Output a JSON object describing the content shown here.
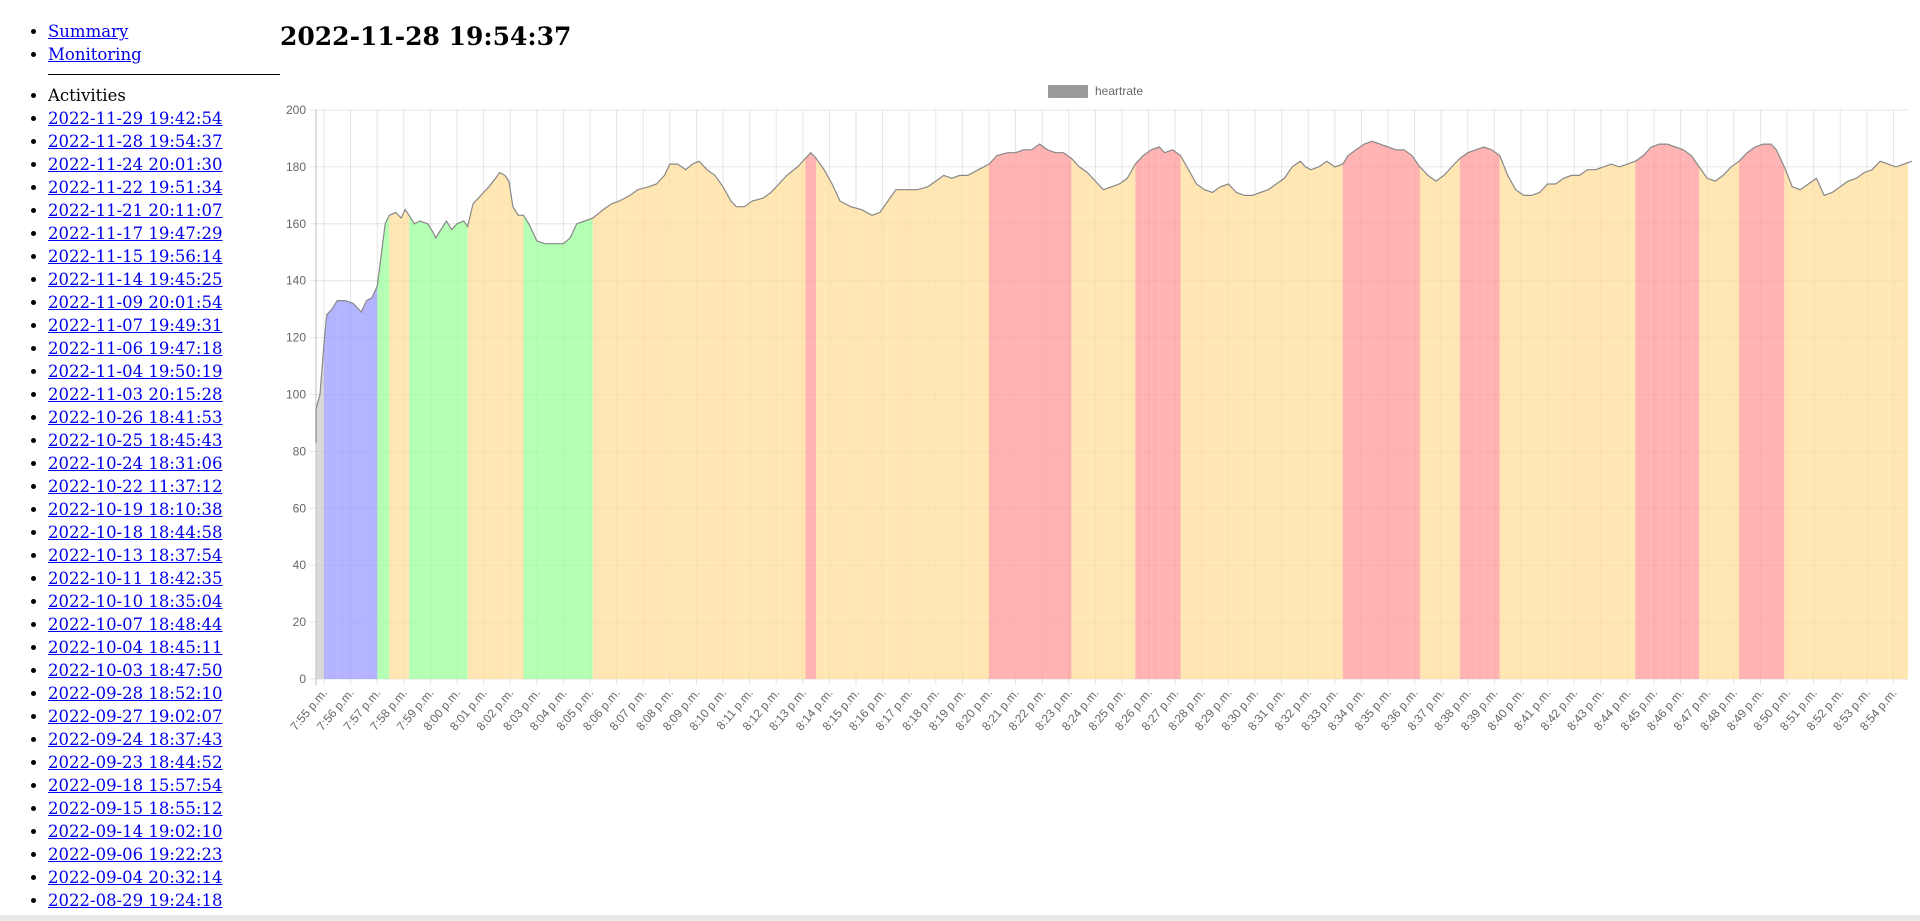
{
  "nav": {
    "links": [
      {
        "label": "Summary"
      },
      {
        "label": "Monitoring"
      }
    ]
  },
  "activities": {
    "heading": "Activities",
    "items": [
      "2022-11-29 19:42:54",
      "2022-11-28 19:54:37",
      "2022-11-24 20:01:30",
      "2022-11-22 19:51:34",
      "2022-11-21 20:11:07",
      "2022-11-17 19:47:29",
      "2022-11-15 19:56:14",
      "2022-11-14 19:45:25",
      "2022-11-09 20:01:54",
      "2022-11-07 19:49:31",
      "2022-11-06 19:47:18",
      "2022-11-04 19:50:19",
      "2022-11-03 20:15:28",
      "2022-10-26 18:41:53",
      "2022-10-25 18:45:43",
      "2022-10-24 18:31:06",
      "2022-10-22 11:37:12",
      "2022-10-19 18:10:38",
      "2022-10-18 18:44:58",
      "2022-10-13 18:37:54",
      "2022-10-11 18:42:35",
      "2022-10-10 18:35:04",
      "2022-10-07 18:48:44",
      "2022-10-04 18:45:11",
      "2022-10-03 18:47:50",
      "2022-09-28 18:52:10",
      "2022-09-27 19:02:07",
      "2022-09-24 18:37:43",
      "2022-09-23 18:44:52",
      "2022-09-18 15:57:54",
      "2022-09-15 18:55:12",
      "2022-09-14 19:02:10",
      "2022-09-06 19:22:23",
      "2022-09-04 20:32:14",
      "2022-08-29 19:24:18"
    ]
  },
  "title": "2022-11-28 19:54:37",
  "chart_data": {
    "type": "area",
    "legend": {
      "label": "heartrate",
      "position": "top-center",
      "swatch_color": "#999999"
    },
    "grid": true,
    "ylim": [
      0,
      200
    ],
    "yticks": [
      0,
      20,
      40,
      60,
      80,
      100,
      120,
      140,
      160,
      180,
      200
    ],
    "xlim_minutes": [
      -0.5,
      59.7
    ],
    "xticks": [
      "7:55 p.m.",
      "7:56 p.m.",
      "7:57 p.m.",
      "7:58 p.m.",
      "7:59 p.m.",
      "8:00 p.m.",
      "8:01 p.m.",
      "8:02 p.m.",
      "8:03 p.m.",
      "8:04 p.m.",
      "8:05 p.m.",
      "8:06 p.m.",
      "8:07 p.m.",
      "8:08 p.m.",
      "8:09 p.m.",
      "8:10 p.m.",
      "8:11 p.m.",
      "8:12 p.m.",
      "8:13 p.m.",
      "8:14 p.m.",
      "8:15 p.m.",
      "8:16 p.m.",
      "8:17 p.m.",
      "8:18 p.m.",
      "8:19 p.m.",
      "8:20 p.m.",
      "8:21 p.m.",
      "8:22 p.m.",
      "8:23 p.m.",
      "8:24 p.m.",
      "8:25 p.m.",
      "8:26 p.m.",
      "8:27 p.m.",
      "8:28 p.m.",
      "8:29 p.m.",
      "8:30 p.m.",
      "8:31 p.m.",
      "8:32 p.m.",
      "8:33 p.m.",
      "8:34 p.m.",
      "8:35 p.m.",
      "8:36 p.m.",
      "8:37 p.m.",
      "8:38 p.m.",
      "8:39 p.m.",
      "8:40 p.m.",
      "8:41 p.m.",
      "8:42 p.m.",
      "8:43 p.m.",
      "8:44 p.m.",
      "8:45 p.m.",
      "8:46 p.m.",
      "8:47 p.m.",
      "8:48 p.m.",
      "8:49 p.m.",
      "8:50 p.m.",
      "8:51 p.m.",
      "8:52 p.m.",
      "8:53 p.m.",
      "8:54 p.m."
    ],
    "zone_colors": {
      "z1": "#cccccc",
      "z2": "#9999ff",
      "z3": "#99ff99",
      "z4": "#ffdd99",
      "z5": "#ff9999"
    },
    "zone_thresholds": [
      110,
      140,
      162,
      182
    ],
    "series": [
      {
        "points_minutes_bpm": [
          [
            -0.5,
            83
          ],
          [
            -0.3,
            95
          ],
          [
            -0.15,
            100
          ],
          [
            0.0,
            118
          ],
          [
            0.1,
            128
          ],
          [
            0.3,
            130
          ],
          [
            0.5,
            133
          ],
          [
            0.8,
            133
          ],
          [
            1.1,
            132
          ],
          [
            1.3,
            130
          ],
          [
            1.4,
            129
          ],
          [
            1.6,
            133
          ],
          [
            1.8,
            134
          ],
          [
            2.0,
            138
          ],
          [
            2.3,
            160
          ],
          [
            2.45,
            163
          ],
          [
            2.7,
            164
          ],
          [
            2.9,
            162
          ],
          [
            3.05,
            165
          ],
          [
            3.2,
            163
          ],
          [
            3.4,
            160
          ],
          [
            3.6,
            161
          ],
          [
            3.9,
            160
          ],
          [
            4.1,
            157
          ],
          [
            4.2,
            155
          ],
          [
            4.4,
            158
          ],
          [
            4.6,
            161
          ],
          [
            4.8,
            158
          ],
          [
            5.0,
            160
          ],
          [
            5.25,
            161
          ],
          [
            5.4,
            159
          ],
          [
            5.6,
            167
          ],
          [
            5.8,
            169
          ],
          [
            6.0,
            171
          ],
          [
            6.2,
            173
          ],
          [
            6.45,
            176
          ],
          [
            6.6,
            178
          ],
          [
            6.8,
            177
          ],
          [
            6.95,
            175
          ],
          [
            7.1,
            166
          ],
          [
            7.3,
            163
          ],
          [
            7.5,
            163
          ],
          [
            7.7,
            160
          ],
          [
            7.85,
            157
          ],
          [
            8.0,
            154
          ],
          [
            8.3,
            153
          ],
          [
            8.7,
            153
          ],
          [
            9.0,
            153
          ],
          [
            9.25,
            155
          ],
          [
            9.5,
            160
          ],
          [
            9.8,
            161
          ],
          [
            10.1,
            162
          ],
          [
            10.5,
            165
          ],
          [
            10.8,
            167
          ],
          [
            11.1,
            168
          ],
          [
            11.5,
            170
          ],
          [
            11.8,
            172
          ],
          [
            12.2,
            173
          ],
          [
            12.5,
            174
          ],
          [
            12.8,
            177
          ],
          [
            13.0,
            181
          ],
          [
            13.3,
            181
          ],
          [
            13.6,
            179
          ],
          [
            13.85,
            181
          ],
          [
            14.1,
            182
          ],
          [
            14.4,
            179
          ],
          [
            14.7,
            177
          ],
          [
            15.0,
            173
          ],
          [
            15.3,
            168
          ],
          [
            15.5,
            166
          ],
          [
            15.8,
            166
          ],
          [
            16.1,
            168
          ],
          [
            16.5,
            169
          ],
          [
            16.8,
            171
          ],
          [
            17.1,
            174
          ],
          [
            17.4,
            177
          ],
          [
            17.8,
            180
          ],
          [
            18.1,
            183
          ],
          [
            18.3,
            185
          ],
          [
            18.5,
            183
          ],
          [
            18.8,
            179
          ],
          [
            19.1,
            174
          ],
          [
            19.4,
            168
          ],
          [
            19.8,
            166
          ],
          [
            20.2,
            165
          ],
          [
            20.6,
            163
          ],
          [
            20.9,
            164
          ],
          [
            21.2,
            168
          ],
          [
            21.5,
            172
          ],
          [
            21.9,
            172
          ],
          [
            22.3,
            172
          ],
          [
            22.7,
            173
          ],
          [
            23.0,
            175
          ],
          [
            23.3,
            177
          ],
          [
            23.6,
            176
          ],
          [
            23.9,
            177
          ],
          [
            24.2,
            177
          ],
          [
            24.6,
            179
          ],
          [
            25.0,
            181
          ],
          [
            25.3,
            184
          ],
          [
            25.7,
            185
          ],
          [
            26.0,
            185
          ],
          [
            26.3,
            186
          ],
          [
            26.6,
            186
          ],
          [
            26.9,
            188
          ],
          [
            27.2,
            186
          ],
          [
            27.5,
            185
          ],
          [
            27.8,
            185
          ],
          [
            28.1,
            183
          ],
          [
            28.4,
            180
          ],
          [
            28.7,
            178
          ],
          [
            29.0,
            175
          ],
          [
            29.3,
            172
          ],
          [
            29.6,
            173
          ],
          [
            29.9,
            174
          ],
          [
            30.2,
            176
          ],
          [
            30.5,
            181
          ],
          [
            30.8,
            184
          ],
          [
            31.1,
            186
          ],
          [
            31.4,
            187
          ],
          [
            31.6,
            185
          ],
          [
            31.9,
            186
          ],
          [
            32.2,
            184
          ],
          [
            32.5,
            179
          ],
          [
            32.8,
            174
          ],
          [
            33.1,
            172
          ],
          [
            33.4,
            171
          ],
          [
            33.7,
            173
          ],
          [
            34.0,
            174
          ],
          [
            34.3,
            171
          ],
          [
            34.6,
            170
          ],
          [
            34.9,
            170
          ],
          [
            35.2,
            171
          ],
          [
            35.5,
            172
          ],
          [
            35.8,
            174
          ],
          [
            36.1,
            176
          ],
          [
            36.4,
            180
          ],
          [
            36.7,
            182
          ],
          [
            36.9,
            180
          ],
          [
            37.1,
            179
          ],
          [
            37.4,
            180
          ],
          [
            37.7,
            182
          ],
          [
            38.0,
            180
          ],
          [
            38.3,
            181
          ],
          [
            38.5,
            184
          ],
          [
            38.8,
            186
          ],
          [
            39.1,
            188
          ],
          [
            39.4,
            189
          ],
          [
            39.7,
            188
          ],
          [
            40.0,
            187
          ],
          [
            40.3,
            186
          ],
          [
            40.6,
            186
          ],
          [
            40.9,
            184
          ],
          [
            41.2,
            180
          ],
          [
            41.5,
            177
          ],
          [
            41.8,
            175
          ],
          [
            42.1,
            177
          ],
          [
            42.4,
            180
          ],
          [
            42.7,
            183
          ],
          [
            43.0,
            185
          ],
          [
            43.3,
            186
          ],
          [
            43.6,
            187
          ],
          [
            43.9,
            186
          ],
          [
            44.2,
            184
          ],
          [
            44.5,
            177
          ],
          [
            44.8,
            172
          ],
          [
            45.1,
            170
          ],
          [
            45.4,
            170
          ],
          [
            45.7,
            171
          ],
          [
            46.0,
            174
          ],
          [
            46.3,
            174
          ],
          [
            46.6,
            176
          ],
          [
            46.9,
            177
          ],
          [
            47.2,
            177
          ],
          [
            47.5,
            179
          ],
          [
            47.8,
            179
          ],
          [
            48.1,
            180
          ],
          [
            48.4,
            181
          ],
          [
            48.7,
            180
          ],
          [
            49.0,
            181
          ],
          [
            49.3,
            182
          ],
          [
            49.6,
            184
          ],
          [
            49.9,
            187
          ],
          [
            50.2,
            188
          ],
          [
            50.5,
            188
          ],
          [
            50.8,
            187
          ],
          [
            51.1,
            186
          ],
          [
            51.4,
            184
          ],
          [
            51.7,
            180
          ],
          [
            52.0,
            176
          ],
          [
            52.3,
            175
          ],
          [
            52.6,
            177
          ],
          [
            52.9,
            180
          ],
          [
            53.2,
            182
          ],
          [
            53.5,
            185
          ],
          [
            53.8,
            187
          ],
          [
            54.1,
            188
          ],
          [
            54.4,
            188
          ],
          [
            54.6,
            186
          ],
          [
            54.9,
            180
          ],
          [
            55.2,
            173
          ],
          [
            55.5,
            172
          ],
          [
            55.8,
            174
          ],
          [
            56.1,
            176
          ],
          [
            56.4,
            170
          ],
          [
            56.7,
            171
          ],
          [
            57.0,
            173
          ],
          [
            57.3,
            175
          ],
          [
            57.6,
            176
          ],
          [
            57.9,
            178
          ],
          [
            58.2,
            179
          ],
          [
            58.5,
            182
          ],
          [
            58.8,
            181
          ],
          [
            59.1,
            180
          ],
          [
            59.4,
            181
          ],
          [
            59.7,
            182
          ]
        ]
      }
    ]
  }
}
